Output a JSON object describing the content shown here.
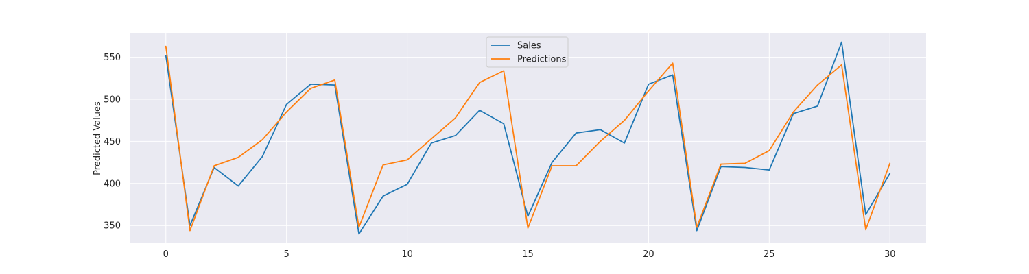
{
  "chart_data": {
    "type": "line",
    "title": "",
    "xlabel": "",
    "ylabel": "Predicted Values",
    "xlim": [
      -1.5,
      31.5
    ],
    "ylim": [
      329,
      579
    ],
    "x_ticks": [
      0,
      5,
      10,
      15,
      20,
      25,
      30
    ],
    "y_ticks": [
      350,
      400,
      450,
      500,
      550
    ],
    "grid": true,
    "legend_position": "upper center",
    "x": [
      0,
      1,
      2,
      3,
      4,
      5,
      6,
      7,
      8,
      9,
      10,
      11,
      12,
      13,
      14,
      15,
      16,
      17,
      18,
      19,
      20,
      21,
      22,
      23,
      24,
      25,
      26,
      27,
      28,
      29,
      30
    ],
    "series": [
      {
        "name": "Sales",
        "color": "#1f77b4",
        "values": [
          552,
          350,
          419,
          397,
          432,
          494,
          518,
          517,
          340,
          385,
          399,
          448,
          457,
          487,
          471,
          361,
          425,
          460,
          464,
          448,
          518,
          529,
          344,
          420,
          419,
          416,
          483,
          492,
          568,
          363,
          412
        ]
      },
      {
        "name": "Predictions",
        "color": "#ff7f0e",
        "values": [
          563,
          344,
          421,
          431,
          452,
          485,
          513,
          523,
          348,
          422,
          428,
          453,
          478,
          520,
          534,
          347,
          421,
          421,
          450,
          475,
          510,
          543,
          348,
          423,
          424,
          439,
          485,
          517,
          541,
          345,
          424
        ]
      }
    ]
  }
}
